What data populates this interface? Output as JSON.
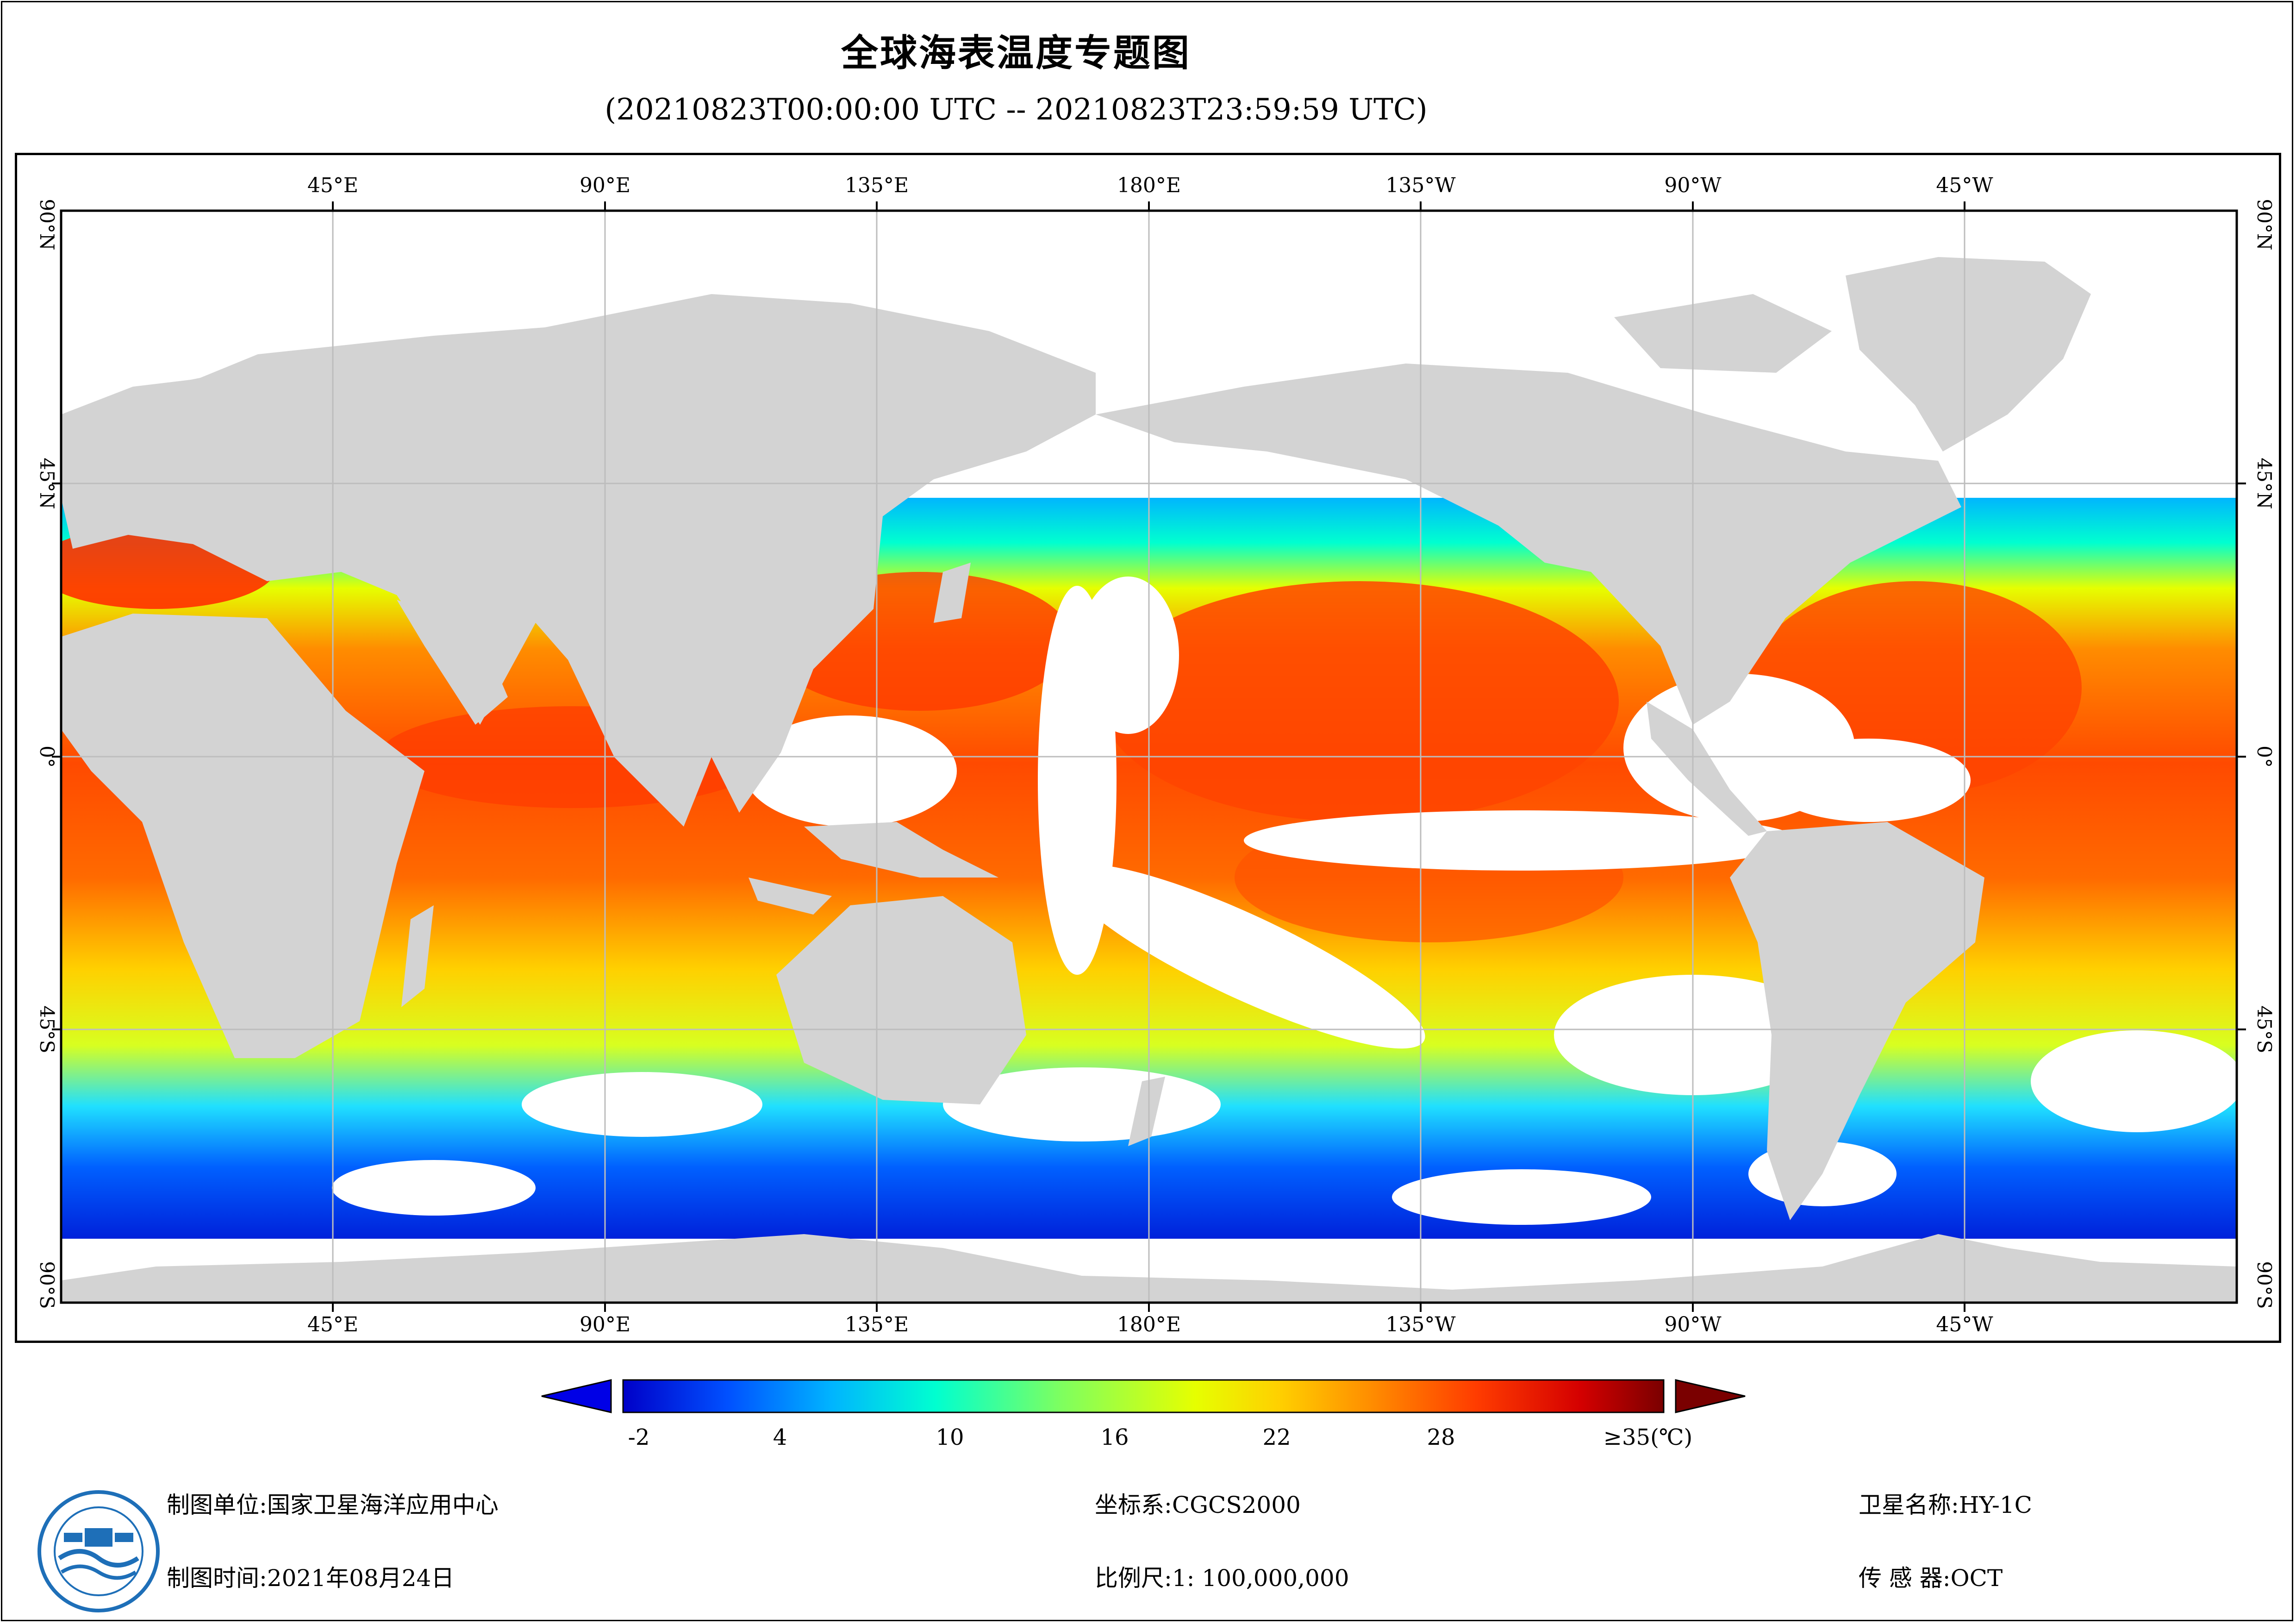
{
  "title": "全球海表温度专题图",
  "subtitle": "(20210823T00:00:00 UTC -- 20210823T23:59:59 UTC)",
  "map": {
    "top_lon_labels": [
      "45°E",
      "90°E",
      "135°E",
      "180°E",
      "135°W",
      "90°W",
      "45°W"
    ],
    "bottom_lon_labels": [
      "45°E",
      "90°E",
      "135°E",
      "180°E",
      "135°W",
      "90°W",
      "45°W"
    ],
    "left_lat_labels": [
      "90°N",
      "45°N",
      "0°",
      "45°S",
      "90°S"
    ],
    "right_lat_labels": [
      "90°N",
      "45°N",
      "0°",
      "45°S",
      "90°S"
    ],
    "colors": {
      "land": "#d3d3d3",
      "no_data": "#ffffff",
      "grid": "#bdbdbd"
    }
  },
  "colorbar": {
    "tick_labels": [
      "-2",
      "4",
      "10",
      "16",
      "22",
      "28",
      "≥35(℃)"
    ],
    "min_value": -2,
    "max_value": 35,
    "unit": "℃",
    "colors": [
      "#0000c8",
      "#0050ff",
      "#00b4ff",
      "#00ffd0",
      "#7dff60",
      "#e6ff00",
      "#ffd000",
      "#ff8c00",
      "#ff3c00",
      "#d40000",
      "#7a0000"
    ]
  },
  "footer": {
    "producer_label": "制图单位:",
    "producer_value": "国家卫星海洋应用中心",
    "date_label": "制图时间:",
    "date_value": "2021年08月24日",
    "crs_label": "坐标系:",
    "crs_value": "CGCS2000",
    "scale_label": "比例尺:",
    "scale_value": "1: 100,000,000",
    "satellite_label": "卫星名称:",
    "satellite_value": "HY-1C",
    "sensor_label": "传 感 器:",
    "sensor_value": "OCT"
  }
}
